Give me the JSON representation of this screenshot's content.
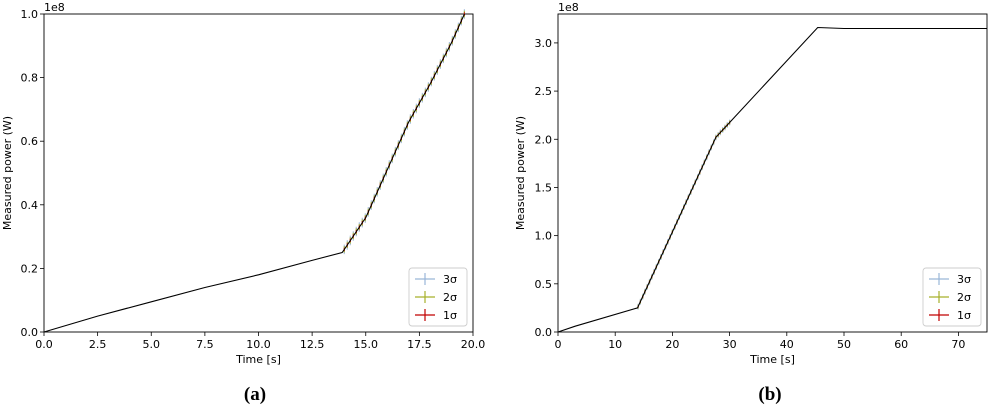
{
  "chart_data": [
    {
      "type": "line",
      "panel_label": "(a)",
      "xlabel": "Time [s]",
      "ylabel": "Measured power (W)",
      "y_offset_text": "1e8",
      "xlim": [
        0.0,
        20.0
      ],
      "ylim": [
        0.0,
        1.0
      ],
      "x_ticks": [
        "0.0",
        "2.5",
        "5.0",
        "7.5",
        "10.0",
        "12.5",
        "15.0",
        "17.5",
        "20.0"
      ],
      "y_ticks": [
        "0.0",
        "0.2",
        "0.4",
        "0.6",
        "0.8",
        "1.0"
      ],
      "grid": false,
      "legend_position": "bottom-right",
      "legend": [
        {
          "label": "3σ",
          "color": "#9ab6d8"
        },
        {
          "label": "2σ",
          "color": "#a7b02a"
        },
        {
          "label": "1σ",
          "color": "#c00000"
        }
      ],
      "series": [
        {
          "name": "mean",
          "color": "#000000",
          "x": [
            0,
            2.5,
            5,
            7.5,
            10,
            12.5,
            13.9,
            15,
            16,
            17,
            18,
            19,
            19.6
          ],
          "y": [
            0.0,
            0.05,
            0.095,
            0.14,
            0.18,
            0.225,
            0.25,
            0.36,
            0.51,
            0.66,
            0.78,
            0.91,
            1.0
          ]
        }
      ],
      "uncertainty_region": {
        "x_range": [
          14.0,
          19.6
        ],
        "sigma_band_halfwidth": [
          0.015,
          0.01,
          0.005
        ]
      }
    },
    {
      "type": "line",
      "panel_label": "(b)",
      "xlabel": "Time [s]",
      "ylabel": "Measured power (W)",
      "y_offset_text": "1e8",
      "xlim": [
        0,
        75
      ],
      "ylim": [
        0.0,
        3.3
      ],
      "x_ticks": [
        "0",
        "10",
        "20",
        "30",
        "40",
        "50",
        "60",
        "70"
      ],
      "y_ticks": [
        "0.0",
        "0.5",
        "1.0",
        "1.5",
        "2.0",
        "2.5",
        "3.0"
      ],
      "grid": false,
      "legend_position": "bottom-right",
      "legend": [
        {
          "label": "3σ",
          "color": "#9ab6d8"
        },
        {
          "label": "2σ",
          "color": "#a7b02a"
        },
        {
          "label": "1σ",
          "color": "#c00000"
        }
      ],
      "series": [
        {
          "name": "mean",
          "color": "#000000",
          "x": [
            0,
            3,
            13.9,
            27.6,
            45.4,
            50,
            75
          ],
          "y": [
            0.0,
            0.06,
            0.25,
            2.02,
            3.16,
            3.15,
            3.15
          ]
        }
      ],
      "uncertainty_region": {
        "x_range": [
          14.0,
          30.0
        ],
        "sigma_band_halfwidth": [
          0.03,
          0.02,
          0.01
        ]
      }
    }
  ]
}
